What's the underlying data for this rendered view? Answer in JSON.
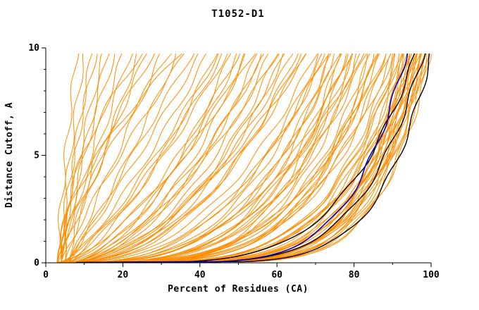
{
  "chart_data": {
    "type": "line",
    "title": "T1052-D1",
    "xlabel": "Percent of Residues (CA)",
    "ylabel": "Distance Cutoff, A",
    "xlim": [
      0,
      100
    ],
    "ylim": [
      0,
      10
    ],
    "x_ticks": [
      0,
      20,
      40,
      60,
      80,
      100
    ],
    "y_ticks": [
      0,
      5,
      10
    ],
    "x_minor_step": 10,
    "y_minor_step": 1,
    "grid": "off",
    "legend": "none",
    "colors": {
      "ensemble": "#ff8c00",
      "highlight": "#000000",
      "selected": "#0000bb",
      "axis": "#000000"
    },
    "curve_model": "percent(y) = a + (b-a)*(y/ymax)^(1/p); y = distance cutoff 0..10",
    "ensemble_curves": [
      [
        3,
        8,
        0.8
      ],
      [
        4,
        10,
        0.7
      ],
      [
        3,
        12,
        0.9
      ],
      [
        5,
        13,
        0.6
      ],
      [
        4,
        15,
        0.8
      ],
      [
        3,
        16,
        1.0
      ],
      [
        5,
        18,
        0.7
      ],
      [
        4,
        20,
        0.9
      ],
      [
        6,
        22,
        0.8
      ],
      [
        3,
        24,
        1.1
      ],
      [
        5,
        26,
        0.9
      ],
      [
        4,
        28,
        0.7
      ],
      [
        6,
        30,
        1.0
      ],
      [
        3,
        32,
        0.8
      ],
      [
        5,
        34,
        1.2
      ],
      [
        4,
        36,
        0.9
      ],
      [
        6,
        38,
        1.0
      ],
      [
        5,
        40,
        1.1
      ],
      [
        3,
        35,
        0.6
      ],
      [
        4,
        25,
        0.5
      ],
      [
        4,
        42,
        1.3
      ],
      [
        5,
        44,
        1.5
      ],
      [
        3,
        46,
        1.4
      ],
      [
        6,
        48,
        1.8
      ],
      [
        4,
        50,
        1.6
      ],
      [
        5,
        52,
        2.0
      ],
      [
        3,
        54,
        1.5
      ],
      [
        6,
        56,
        1.9
      ],
      [
        4,
        58,
        2.2
      ],
      [
        5,
        60,
        1.7
      ],
      [
        3,
        62,
        2.4
      ],
      [
        6,
        64,
        2.0
      ],
      [
        4,
        66,
        2.3
      ],
      [
        5,
        68,
        1.8
      ],
      [
        3,
        70,
        2.5
      ],
      [
        6,
        45,
        1.2
      ],
      [
        4,
        55,
        2.1
      ],
      [
        5,
        65,
        2.4
      ],
      [
        3,
        50,
        1.9
      ],
      [
        6,
        60,
        2.2
      ],
      [
        4,
        47,
        1.4
      ],
      [
        5,
        57,
        1.7
      ],
      [
        3,
        67,
        2.3
      ],
      [
        6,
        52,
        1.6
      ],
      [
        4,
        62,
        2.1
      ],
      [
        4,
        72,
        2.8
      ],
      [
        5,
        74,
        3.2
      ],
      [
        3,
        76,
        3.0
      ],
      [
        6,
        78,
        3.5
      ],
      [
        4,
        80,
        3.8
      ],
      [
        5,
        82,
        3.4
      ],
      [
        3,
        84,
        4.2
      ],
      [
        6,
        86,
        3.9
      ],
      [
        4,
        88,
        4.5
      ],
      [
        5,
        90,
        4.0
      ],
      [
        3,
        73,
        2.6
      ],
      [
        6,
        75,
        3.1
      ],
      [
        4,
        77,
        3.6
      ],
      [
        5,
        79,
        2.9
      ],
      [
        3,
        81,
        4.4
      ],
      [
        6,
        83,
        3.3
      ],
      [
        4,
        85,
        4.8
      ],
      [
        5,
        87,
        3.7
      ],
      [
        3,
        89,
        4.1
      ],
      [
        6,
        71,
        2.7
      ],
      [
        4,
        74,
        3.9
      ],
      [
        5,
        78,
        4.6
      ],
      [
        3,
        82,
        2.8
      ],
      [
        6,
        86,
        4.3
      ],
      [
        4,
        90,
        5.0
      ],
      [
        5,
        72,
        3.0
      ],
      [
        3,
        76,
        4.7
      ],
      [
        6,
        80,
        3.2
      ],
      [
        4,
        84,
        4.9
      ],
      [
        5,
        88,
        3.5
      ],
      [
        4,
        91,
        5.5
      ],
      [
        5,
        92,
        6.0
      ],
      [
        3,
        93,
        5.2
      ],
      [
        6,
        94,
        6.8
      ],
      [
        4,
        95,
        5.8
      ],
      [
        5,
        96,
        7.2
      ],
      [
        3,
        97,
        6.4
      ],
      [
        6,
        98,
        7.8
      ],
      [
        4,
        99,
        6.1
      ],
      [
        5,
        100,
        7.5
      ],
      [
        3,
        92,
        4.8
      ],
      [
        6,
        93,
        6.6
      ],
      [
        4,
        94,
        5.4
      ],
      [
        5,
        95,
        7.0
      ],
      [
        3,
        96,
        5.9
      ],
      [
        6,
        97,
        7.4
      ],
      [
        4,
        98,
        6.3
      ],
      [
        5,
        99,
        8.0
      ],
      [
        3,
        91,
        5.0
      ],
      [
        6,
        95,
        6.7
      ],
      [
        4,
        96,
        4.6
      ],
      [
        5,
        97,
        5.6
      ],
      [
        3,
        98,
        7.1
      ],
      [
        6,
        99,
        6.9
      ],
      [
        4,
        93,
        7.6
      ],
      [
        5,
        94,
        4.9
      ],
      [
        3,
        95,
        6.2
      ],
      [
        6,
        96,
        7.7
      ],
      [
        4,
        97,
        5.3
      ],
      [
        5,
        98,
        6.5
      ]
    ],
    "highlight_curves": [
      [
        10,
        96,
        4.5
      ],
      [
        12,
        98,
        5.5
      ],
      [
        8,
        100,
        7.0
      ]
    ],
    "selected_curve": [
      12,
      93.5,
      5.8
    ]
  }
}
